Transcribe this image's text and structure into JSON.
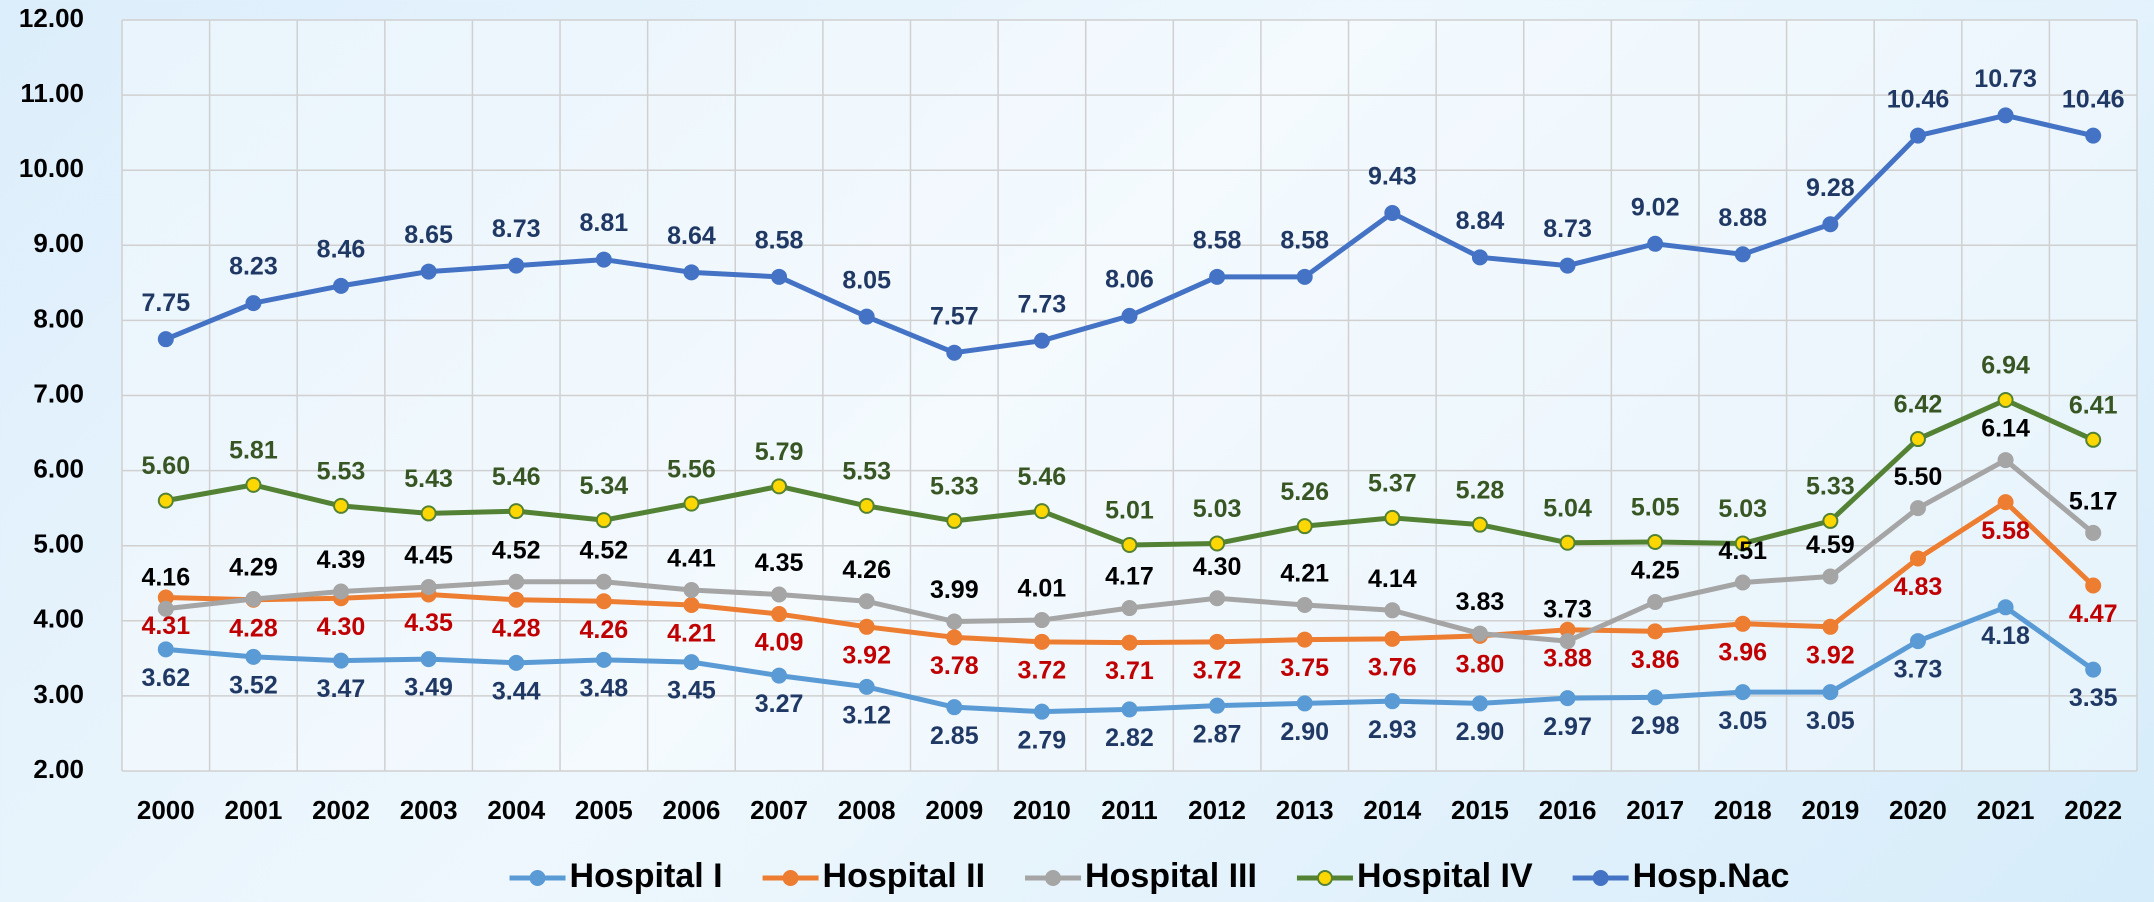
{
  "chart_data": {
    "type": "line",
    "x": [
      2000,
      2001,
      2002,
      2003,
      2004,
      2005,
      2006,
      2007,
      2008,
      2009,
      2010,
      2011,
      2012,
      2013,
      2014,
      2015,
      2016,
      2017,
      2018,
      2019,
      2020,
      2021,
      2022
    ],
    "ylim": [
      2,
      12
    ],
    "yticks": [
      {
        "value": 2,
        "label": "2.00"
      },
      {
        "value": 3,
        "label": "3.00"
      },
      {
        "value": 4,
        "label": "4.00"
      },
      {
        "value": 5,
        "label": "5.00"
      },
      {
        "value": 6,
        "label": "6.00"
      },
      {
        "value": 7,
        "label": "7.00"
      },
      {
        "value": 8,
        "label": "8.00"
      },
      {
        "value": 9,
        "label": "9.00"
      },
      {
        "value": 10,
        "label": "10.00"
      },
      {
        "value": 11,
        "label": "11.00"
      },
      {
        "value": 12,
        "label": "12.00"
      }
    ],
    "grid": true,
    "series": [
      {
        "name": "Hospital I",
        "color": "#5b9bd5",
        "marker_fill": "#5b9bd5",
        "label_color": "#1f3864",
        "values": [
          3.62,
          3.52,
          3.47,
          3.49,
          3.44,
          3.48,
          3.45,
          3.27,
          3.12,
          2.85,
          2.79,
          2.82,
          2.87,
          2.9,
          2.93,
          2.9,
          2.97,
          2.98,
          3.05,
          3.05,
          3.73,
          4.18,
          3.35
        ],
        "value_labels": [
          "3.62",
          "3.52",
          "3.47",
          "3.49",
          "3.44",
          "3.48",
          "3.45",
          "3.27",
          "3.12",
          "2.85",
          "2.79",
          "2.82",
          "2.87",
          "2.90",
          "2.93",
          "2.90",
          "2.97",
          "2.98",
          "3.05",
          "3.05",
          "3.73",
          "4.18",
          "3.35"
        ]
      },
      {
        "name": "Hospital II",
        "color": "#ed7d31",
        "marker_fill": "#ed7d31",
        "label_color": "#c00000",
        "values": [
          4.31,
          4.28,
          4.3,
          4.35,
          4.28,
          4.26,
          4.21,
          4.09,
          3.92,
          3.78,
          3.72,
          3.71,
          3.72,
          3.75,
          3.76,
          3.8,
          3.88,
          3.86,
          3.96,
          3.92,
          4.83,
          5.58,
          4.47
        ],
        "value_labels": [
          "4.31",
          "4.28",
          "4.30",
          "4.35",
          "4.28",
          "4.26",
          "4.21",
          "4.09",
          "3.92",
          "3.78",
          "3.72",
          "3.71",
          "3.72",
          "3.75",
          "3.76",
          "3.80",
          "3.88",
          "3.86",
          "3.96",
          "3.92",
          "4.83",
          "5.58",
          "4.47"
        ]
      },
      {
        "name": "Hospital III",
        "color": "#a5a5a5",
        "marker_fill": "#a5a5a5",
        "label_color": "#000000",
        "values": [
          4.16,
          4.29,
          4.39,
          4.45,
          4.52,
          4.52,
          4.41,
          4.35,
          4.26,
          3.99,
          4.01,
          4.17,
          4.3,
          4.21,
          4.14,
          3.83,
          3.73,
          4.25,
          4.51,
          4.59,
          5.5,
          6.14,
          5.17
        ],
        "value_labels": [
          "4.16",
          "4.29",
          "4.39",
          "4.45",
          "4.52",
          "4.52",
          "4.41",
          "4.35",
          "4.26",
          "3.99",
          "4.01",
          "4.17",
          "4.30",
          "4.21",
          "4.14",
          "3.83",
          "3.73",
          "4.25",
          "4.51",
          "4.59",
          "5.50",
          "6.14",
          "5.17"
        ]
      },
      {
        "name": "Hospital IV",
        "color": "#548235",
        "marker_fill": "#ffd700",
        "label_color": "#375623",
        "values": [
          5.6,
          5.81,
          5.53,
          5.43,
          5.46,
          5.34,
          5.56,
          5.79,
          5.53,
          5.33,
          5.46,
          5.01,
          5.03,
          5.26,
          5.37,
          5.28,
          5.04,
          5.05,
          5.03,
          5.33,
          6.42,
          6.94,
          6.41
        ],
        "value_labels": [
          "5.60",
          "5.81",
          "5.53",
          "5.43",
          "5.46",
          "5.34",
          "5.56",
          "5.79",
          "5.53",
          "5.33",
          "5.46",
          "5.01",
          "5.03",
          "5.26",
          "5.37",
          "5.28",
          "5.04",
          "5.05",
          "5.03",
          "5.33",
          "6.42",
          "6.94",
          "6.41"
        ]
      },
      {
        "name": "Hosp.Nac",
        "color": "#4472c4",
        "marker_fill": "#4472c4",
        "label_color": "#1f3864",
        "values": [
          7.75,
          8.23,
          8.46,
          8.65,
          8.73,
          8.81,
          8.64,
          8.58,
          8.05,
          7.57,
          7.73,
          8.06,
          8.58,
          8.58,
          9.43,
          8.84,
          8.73,
          9.02,
          8.88,
          9.28,
          10.46,
          10.73,
          10.46
        ],
        "value_labels": [
          "7.75",
          "8.23",
          "8.46",
          "8.65",
          "8.73",
          "8.81",
          "8.64",
          "8.58",
          "8.05",
          "7.57",
          "7.73",
          "8.06",
          "8.58",
          "8.58",
          "9.43",
          "8.84",
          "8.73",
          "9.02",
          "8.88",
          "9.28",
          "10.46",
          "10.73",
          "10.46"
        ]
      }
    ]
  }
}
